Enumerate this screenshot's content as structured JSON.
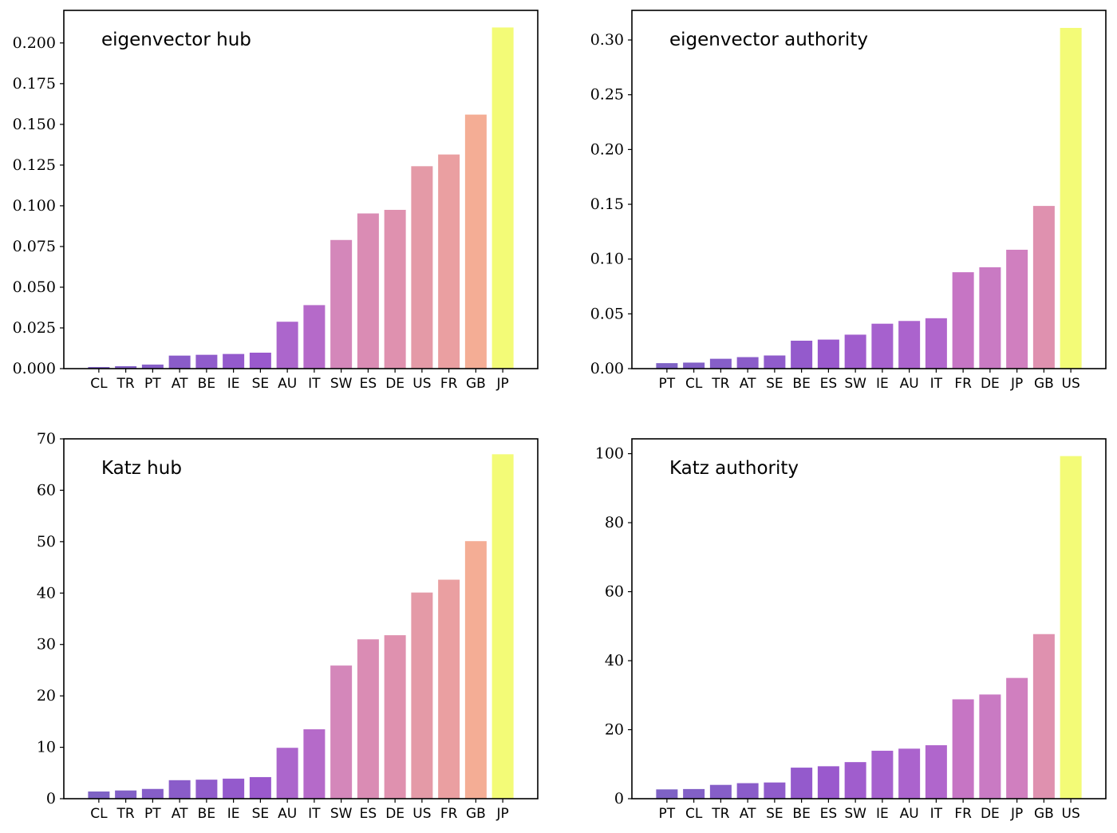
{
  "chart_data": [
    {
      "type": "bar",
      "title": "eigenvector hub",
      "xlabel": "",
      "ylabel": "",
      "ylim": [
        0,
        0.22
      ],
      "yticks": [
        0.0,
        0.025,
        0.05,
        0.075,
        0.1,
        0.125,
        0.15,
        0.175,
        0.2
      ],
      "ytick_labels": [
        "0.000",
        "0.025",
        "0.050",
        "0.075",
        "0.100",
        "0.125",
        "0.150",
        "0.175",
        "0.200"
      ],
      "categories": [
        "CL",
        "TR",
        "PT",
        "AT",
        "BE",
        "IE",
        "SE",
        "AU",
        "IT",
        "SW",
        "ES",
        "DE",
        "US",
        "FR",
        "GB",
        "JP"
      ],
      "values": [
        0.001,
        0.0015,
        0.0025,
        0.008,
        0.0085,
        0.009,
        0.0098,
        0.0288,
        0.039,
        0.079,
        0.0953,
        0.0975,
        0.1243,
        0.1315,
        0.156,
        0.2095
      ],
      "colors": [
        "#7e62c4",
        "#8260c6",
        "#865ec8",
        "#8a5cc9",
        "#905ccb",
        "#945acc",
        "#9a59cd",
        "#ac66cc",
        "#b56ac9",
        "#d487ba",
        "#da8cb4",
        "#df91af",
        "#e49aa7",
        "#ea9fa1",
        "#f4ad95",
        "#f3fb77"
      ],
      "grid": false,
      "legend": "none"
    },
    {
      "type": "bar",
      "title": "eigenvector authority",
      "xlabel": "",
      "ylabel": "",
      "ylim": [
        0,
        0.327
      ],
      "yticks": [
        0.0,
        0.05,
        0.1,
        0.15,
        0.2,
        0.25,
        0.3
      ],
      "ytick_labels": [
        "0.00",
        "0.05",
        "0.10",
        "0.15",
        "0.20",
        "0.25",
        "0.30"
      ],
      "categories": [
        "PT",
        "CL",
        "TR",
        "AT",
        "SE",
        "BE",
        "ES",
        "SW",
        "IE",
        "AU",
        "IT",
        "FR",
        "DE",
        "JP",
        "GB",
        "US"
      ],
      "values": [
        0.005,
        0.0055,
        0.009,
        0.0105,
        0.012,
        0.0255,
        0.0265,
        0.031,
        0.041,
        0.0435,
        0.046,
        0.088,
        0.0925,
        0.1085,
        0.1485,
        0.311
      ],
      "colors": [
        "#7e62c4",
        "#8260c6",
        "#865ec8",
        "#8a5cc9",
        "#905ccb",
        "#945acc",
        "#9a59cd",
        "#a05dcd",
        "#a661ce",
        "#ab63cd",
        "#b066cc",
        "#c675c4",
        "#c97ac3",
        "#d07fbf",
        "#df91af",
        "#f3fb77"
      ],
      "grid": false,
      "legend": "none"
    },
    {
      "type": "bar",
      "title": "Katz hub",
      "xlabel": "",
      "ylabel": "",
      "ylim": [
        0,
        70
      ],
      "yticks": [
        0,
        10,
        20,
        30,
        40,
        50,
        60,
        70
      ],
      "ytick_labels": [
        "0",
        "10",
        "20",
        "30",
        "40",
        "50",
        "60",
        "70"
      ],
      "categories": [
        "CL",
        "TR",
        "PT",
        "AT",
        "BE",
        "IE",
        "SE",
        "AU",
        "IT",
        "SW",
        "ES",
        "DE",
        "US",
        "FR",
        "GB",
        "JP"
      ],
      "values": [
        1.4,
        1.6,
        1.9,
        3.6,
        3.7,
        3.9,
        4.2,
        9.9,
        13.5,
        25.9,
        31.0,
        31.8,
        40.1,
        42.6,
        50.1,
        67.0
      ],
      "colors": [
        "#7e62c4",
        "#8260c6",
        "#865ec8",
        "#8a5cc9",
        "#905ccb",
        "#945acc",
        "#9a59cd",
        "#ac66cc",
        "#b56ac9",
        "#d487ba",
        "#da8cb4",
        "#df91af",
        "#e49aa7",
        "#ea9fa1",
        "#f4ad95",
        "#f3fb77"
      ],
      "grid": false,
      "legend": "none"
    },
    {
      "type": "bar",
      "title": "Katz authority",
      "xlabel": "",
      "ylabel": "",
      "ylim": [
        0,
        104.3
      ],
      "yticks": [
        0,
        20,
        40,
        60,
        80,
        100
      ],
      "ytick_labels": [
        "0",
        "20",
        "40",
        "60",
        "80",
        "100"
      ],
      "categories": [
        "PT",
        "CL",
        "TR",
        "AT",
        "SE",
        "BE",
        "ES",
        "SW",
        "IE",
        "AU",
        "IT",
        "FR",
        "DE",
        "JP",
        "GB",
        "US"
      ],
      "values": [
        2.7,
        2.8,
        4.0,
        4.5,
        4.7,
        9.0,
        9.4,
        10.6,
        13.9,
        14.5,
        15.5,
        28.8,
        30.2,
        35.0,
        47.7,
        99.3
      ],
      "colors": [
        "#7e62c4",
        "#8260c6",
        "#865ec8",
        "#8a5cc9",
        "#905ccb",
        "#945acc",
        "#9a59cd",
        "#a05dcd",
        "#a661ce",
        "#ab63cd",
        "#b066cc",
        "#c675c4",
        "#c97ac3",
        "#d07fbf",
        "#df91af",
        "#f3fb77"
      ],
      "grid": false,
      "legend": "none"
    }
  ]
}
